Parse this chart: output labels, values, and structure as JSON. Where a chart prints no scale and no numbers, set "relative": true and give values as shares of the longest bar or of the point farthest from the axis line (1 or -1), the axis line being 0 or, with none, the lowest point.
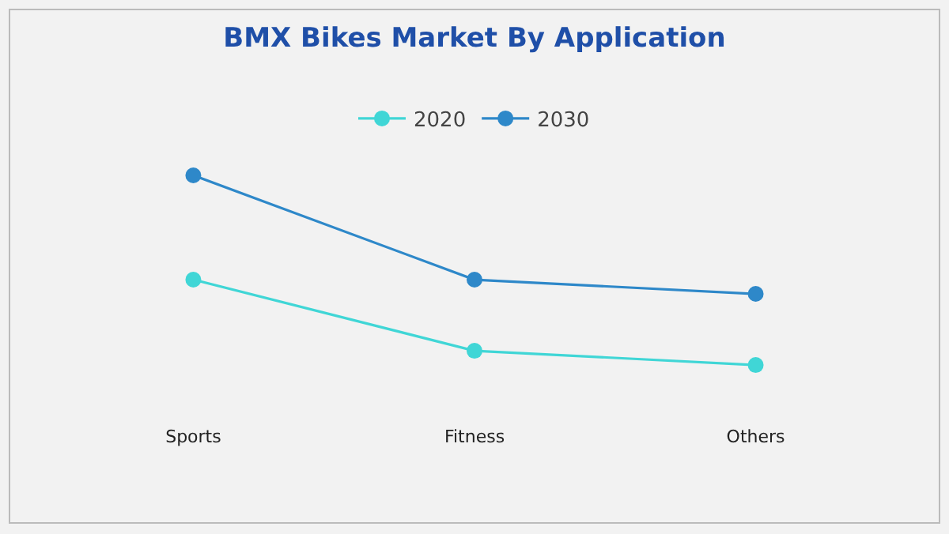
{
  "chart_data": {
    "type": "line",
    "title": "BMX Bikes Market By Application",
    "relative": true,
    "categories": [
      "Sports",
      "Fitness",
      "Others"
    ],
    "series": [
      {
        "name": "2020",
        "color": "#40d6d6",
        "values": [
          0.45,
          0.075,
          0
        ]
      },
      {
        "name": "2030",
        "color": "#2e88c9",
        "values": [
          1,
          0.45,
          0.375
        ]
      }
    ],
    "legend": "top",
    "marker": "circle",
    "grid": false
  }
}
